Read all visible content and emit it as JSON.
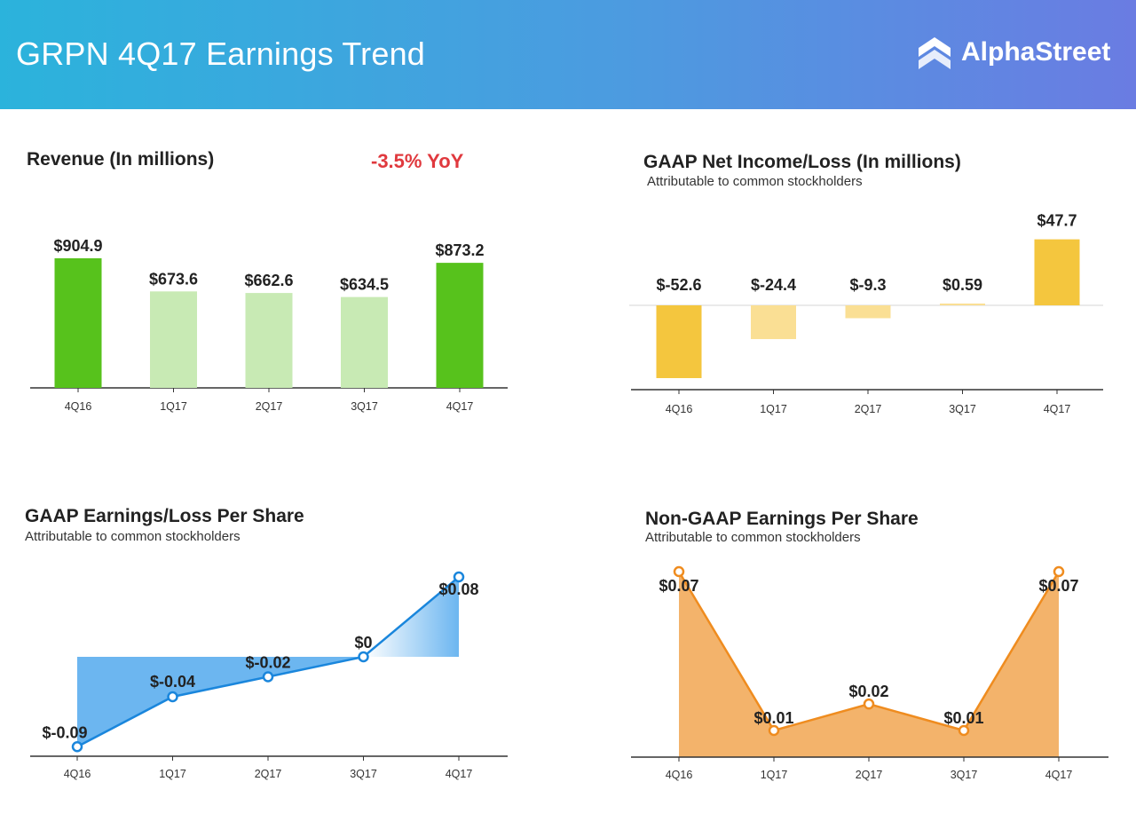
{
  "header": {
    "title": "GRPN 4Q17 Earnings Trend",
    "brand": "AlphaStreet",
    "background_start": "#2bb3dc",
    "background_end": "#6a7ce2"
  },
  "chart_data": [
    {
      "id": "revenue",
      "type": "bar",
      "title": "Revenue (In millions)",
      "subtitle": "",
      "badge": "-3.5% YoY",
      "badge_color": "#e0393e",
      "categories": [
        "4Q16",
        "1Q17",
        "2Q17",
        "3Q17",
        "4Q17"
      ],
      "values": [
        904.9,
        673.6,
        662.6,
        634.5,
        873.2
      ],
      "value_labels": [
        "$904.9",
        "$673.6",
        "$662.6",
        "$634.5",
        "$873.2"
      ],
      "colors": [
        "#57c21c",
        "#c8eab4",
        "#c8eab4",
        "#c8eab4",
        "#57c21c"
      ],
      "ylim": [
        0,
        1000
      ],
      "xlabel": "",
      "ylabel": "",
      "grid": false
    },
    {
      "id": "net_income",
      "type": "bar",
      "title": "GAAP Net Income/Loss (In millions)",
      "subtitle": "Attributable to common stockholders",
      "categories": [
        "4Q16",
        "1Q17",
        "2Q17",
        "3Q17",
        "4Q17"
      ],
      "values": [
        -52.6,
        -24.4,
        -9.3,
        0.59,
        47.7
      ],
      "value_labels": [
        "$-52.6",
        "$-24.4",
        "$-9.3",
        "$0.59",
        "$47.7"
      ],
      "colors": [
        "#f4c63e",
        "#fadf94",
        "#fadf94",
        "#fadf94",
        "#f4c63e"
      ],
      "ylim": [
        -60,
        60
      ],
      "xlabel": "",
      "ylabel": "",
      "grid": false
    },
    {
      "id": "gaap_eps",
      "type": "area",
      "title": "GAAP Earnings/Loss Per Share",
      "subtitle": "Attributable to common stockholders",
      "categories": [
        "4Q16",
        "1Q17",
        "2Q17",
        "3Q17",
        "4Q17"
      ],
      "values": [
        -0.09,
        -0.04,
        -0.02,
        0,
        0.08
      ],
      "value_labels": [
        "$-0.09",
        "$-0.04",
        "$-0.02",
        "$0",
        "$0.08"
      ],
      "line_color": "#1a86dc",
      "fill_color": "#6cb6f0",
      "ylim": [
        -0.1,
        0.1
      ],
      "xlabel": "",
      "ylabel": "",
      "grid": false
    },
    {
      "id": "non_gaap_eps",
      "type": "area",
      "title": "Non-GAAP Earnings Per Share",
      "subtitle": "Attributable to common stockholders",
      "categories": [
        "4Q16",
        "1Q17",
        "2Q17",
        "3Q17",
        "4Q17"
      ],
      "values": [
        0.07,
        0.01,
        0.02,
        0.01,
        0.07
      ],
      "value_labels": [
        "$0.07",
        "$0.01",
        "$0.02",
        "$0.01",
        "$0.07"
      ],
      "line_color": "#ef8c1f",
      "fill_color": "#f3b36b",
      "ylim": [
        0,
        0.07
      ],
      "xlabel": "",
      "ylabel": "",
      "grid": false
    }
  ]
}
